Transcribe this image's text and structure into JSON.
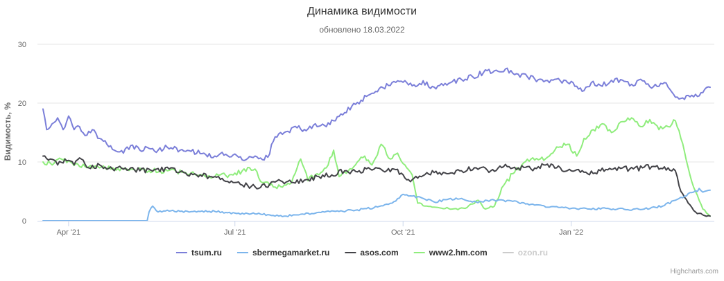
{
  "chart_data": {
    "type": "line",
    "title": "Динамика видимости",
    "subtitle": "обновлено 18.03.2022",
    "ylabel": "Видимость, %",
    "ylim": [
      0,
      30
    ],
    "yticks": [
      0,
      10,
      20,
      30
    ],
    "xlim": [
      "2021-03-18",
      "2022-03-18"
    ],
    "xticks": [
      {
        "date": "2021-04-01",
        "label": "Apr '21"
      },
      {
        "date": "2021-07-01",
        "label": "Jul '21"
      },
      {
        "date": "2021-10-01",
        "label": "Oct '21"
      },
      {
        "date": "2022-01-01",
        "label": "Jan '22"
      }
    ],
    "grid": true,
    "legend_position": "bottom-center",
    "credits": "Highcharts.com",
    "series": [
      {
        "name": "tsum.ru",
        "color": "#7b7fd9",
        "visible": true,
        "points": [
          [
            "2021-03-18",
            19.0
          ],
          [
            "2021-03-20",
            15.5
          ],
          [
            "2021-03-23",
            16.5
          ],
          [
            "2021-03-26",
            17.5
          ],
          [
            "2021-03-29",
            15.5
          ],
          [
            "2021-04-01",
            17.8
          ],
          [
            "2021-04-04",
            15.5
          ],
          [
            "2021-04-07",
            16.0
          ],
          [
            "2021-04-10",
            14.5
          ],
          [
            "2021-04-14",
            15.5
          ],
          [
            "2021-04-18",
            14.0
          ],
          [
            "2021-04-22",
            13.0
          ],
          [
            "2021-04-26",
            12.0
          ],
          [
            "2021-05-01",
            11.5
          ],
          [
            "2021-05-05",
            12.8
          ],
          [
            "2021-05-10",
            12.0
          ],
          [
            "2021-05-15",
            12.3
          ],
          [
            "2021-05-20",
            12.0
          ],
          [
            "2021-05-25",
            12.5
          ],
          [
            "2021-06-01",
            12.0
          ],
          [
            "2021-06-07",
            11.8
          ],
          [
            "2021-06-14",
            11.5
          ],
          [
            "2021-06-20",
            11.0
          ],
          [
            "2021-06-26",
            11.3
          ],
          [
            "2021-07-03",
            10.8
          ],
          [
            "2021-07-08",
            10.6
          ],
          [
            "2021-07-12",
            11.0
          ],
          [
            "2021-07-16",
            10.4
          ],
          [
            "2021-07-19",
            10.8
          ],
          [
            "2021-07-22",
            13.5
          ],
          [
            "2021-07-26",
            15.0
          ],
          [
            "2021-07-30",
            15.2
          ],
          [
            "2021-08-04",
            15.8
          ],
          [
            "2021-08-09",
            15.3
          ],
          [
            "2021-08-14",
            16.5
          ],
          [
            "2021-08-19",
            16.2
          ],
          [
            "2021-08-24",
            17.0
          ],
          [
            "2021-08-29",
            18.0
          ],
          [
            "2021-09-03",
            19.5
          ],
          [
            "2021-09-08",
            20.5
          ],
          [
            "2021-09-13",
            21.5
          ],
          [
            "2021-09-18",
            22.5
          ],
          [
            "2021-09-23",
            23.0
          ],
          [
            "2021-09-28",
            23.8
          ],
          [
            "2021-10-03",
            23.5
          ],
          [
            "2021-10-08",
            22.8
          ],
          [
            "2021-10-12",
            23.8
          ],
          [
            "2021-10-16",
            22.5
          ],
          [
            "2021-10-21",
            23.0
          ],
          [
            "2021-10-27",
            23.5
          ],
          [
            "2021-11-02",
            24.0
          ],
          [
            "2021-11-08",
            24.5
          ],
          [
            "2021-11-14",
            25.2
          ],
          [
            "2021-11-20",
            25.5
          ],
          [
            "2021-11-26",
            25.8
          ],
          [
            "2021-12-02",
            25.0
          ],
          [
            "2021-12-08",
            24.5
          ],
          [
            "2021-12-14",
            24.0
          ],
          [
            "2021-12-20",
            23.5
          ],
          [
            "2021-12-26",
            23.8
          ],
          [
            "2022-01-02",
            23.5
          ],
          [
            "2022-01-07",
            22.0
          ],
          [
            "2022-01-12",
            23.5
          ],
          [
            "2022-01-17",
            23.0
          ],
          [
            "2022-01-22",
            23.5
          ],
          [
            "2022-01-28",
            24.0
          ],
          [
            "2022-02-03",
            23.2
          ],
          [
            "2022-02-09",
            23.8
          ],
          [
            "2022-02-15",
            22.8
          ],
          [
            "2022-02-21",
            23.5
          ],
          [
            "2022-02-26",
            21.5
          ],
          [
            "2022-03-02",
            20.8
          ],
          [
            "2022-03-06",
            21.3
          ],
          [
            "2022-03-10",
            21.5
          ],
          [
            "2022-03-14",
            21.8
          ],
          [
            "2022-03-18",
            22.7
          ]
        ]
      },
      {
        "name": "sbermegamarket.ru",
        "color": "#7cb5ec",
        "visible": true,
        "points": [
          [
            "2021-03-18",
            0.0
          ],
          [
            "2021-04-10",
            0.0
          ],
          [
            "2021-05-01",
            0.0
          ],
          [
            "2021-05-14",
            0.0
          ],
          [
            "2021-05-15",
            1.5
          ],
          [
            "2021-05-17",
            2.5
          ],
          [
            "2021-05-20",
            1.5
          ],
          [
            "2021-05-25",
            1.8
          ],
          [
            "2021-06-01",
            1.6
          ],
          [
            "2021-06-10",
            1.5
          ],
          [
            "2021-06-20",
            1.6
          ],
          [
            "2021-07-01",
            1.3
          ],
          [
            "2021-07-10",
            1.2
          ],
          [
            "2021-07-20",
            1.0
          ],
          [
            "2021-07-28",
            0.8
          ],
          [
            "2021-08-05",
            1.0
          ],
          [
            "2021-08-15",
            1.4
          ],
          [
            "2021-08-25",
            1.6
          ],
          [
            "2021-09-05",
            1.8
          ],
          [
            "2021-09-15",
            2.2
          ],
          [
            "2021-09-25",
            3.0
          ],
          [
            "2021-10-01",
            4.5
          ],
          [
            "2021-10-06",
            4.2
          ],
          [
            "2021-10-12",
            3.8
          ],
          [
            "2021-10-18",
            3.2
          ],
          [
            "2021-10-25",
            3.6
          ],
          [
            "2021-11-02",
            3.8
          ],
          [
            "2021-11-10",
            3.2
          ],
          [
            "2021-11-20",
            3.5
          ],
          [
            "2021-11-30",
            3.3
          ],
          [
            "2021-12-10",
            2.8
          ],
          [
            "2021-12-20",
            2.3
          ],
          [
            "2022-01-01",
            2.1
          ],
          [
            "2022-01-10",
            2.0
          ],
          [
            "2022-01-20",
            2.1
          ],
          [
            "2022-02-01",
            1.9
          ],
          [
            "2022-02-10",
            2.0
          ],
          [
            "2022-02-20",
            2.5
          ],
          [
            "2022-02-27",
            3.5
          ],
          [
            "2022-03-04",
            4.2
          ],
          [
            "2022-03-08",
            4.8
          ],
          [
            "2022-03-12",
            5.5
          ],
          [
            "2022-03-15",
            5.0
          ],
          [
            "2022-03-18",
            5.2
          ]
        ]
      },
      {
        "name": "asos.com",
        "color": "#434348",
        "visible": true,
        "points": [
          [
            "2021-03-18",
            11.0
          ],
          [
            "2021-03-22",
            10.5
          ],
          [
            "2021-03-26",
            9.5
          ],
          [
            "2021-03-30",
            10.5
          ],
          [
            "2021-04-04",
            9.5
          ],
          [
            "2021-04-08",
            10.5
          ],
          [
            "2021-04-12",
            9.0
          ],
          [
            "2021-04-18",
            9.5
          ],
          [
            "2021-04-25",
            8.8
          ],
          [
            "2021-05-02",
            9.0
          ],
          [
            "2021-05-10",
            8.5
          ],
          [
            "2021-05-18",
            8.7
          ],
          [
            "2021-05-26",
            8.8
          ],
          [
            "2021-06-03",
            8.2
          ],
          [
            "2021-06-10",
            7.8
          ],
          [
            "2021-06-17",
            7.5
          ],
          [
            "2021-06-24",
            7.2
          ],
          [
            "2021-07-01",
            6.5
          ],
          [
            "2021-07-08",
            6.0
          ],
          [
            "2021-07-14",
            5.5
          ],
          [
            "2021-07-20",
            6.2
          ],
          [
            "2021-07-26",
            6.8
          ],
          [
            "2021-08-02",
            6.5
          ],
          [
            "2021-08-09",
            7.0
          ],
          [
            "2021-08-16",
            7.5
          ],
          [
            "2021-08-23",
            7.8
          ],
          [
            "2021-08-30",
            8.5
          ],
          [
            "2021-09-06",
            8.3
          ],
          [
            "2021-09-13",
            8.8
          ],
          [
            "2021-09-20",
            8.5
          ],
          [
            "2021-09-27",
            8.7
          ],
          [
            "2021-10-04",
            7.0
          ],
          [
            "2021-10-11",
            7.5
          ],
          [
            "2021-10-18",
            8.2
          ],
          [
            "2021-10-25",
            8.0
          ],
          [
            "2021-11-02",
            8.5
          ],
          [
            "2021-11-10",
            9.0
          ],
          [
            "2021-11-18",
            8.5
          ],
          [
            "2021-11-25",
            9.2
          ],
          [
            "2021-12-03",
            9.0
          ],
          [
            "2021-12-10",
            8.8
          ],
          [
            "2021-12-17",
            9.5
          ],
          [
            "2021-12-24",
            9.0
          ],
          [
            "2022-01-01",
            8.5
          ],
          [
            "2022-01-10",
            8.0
          ],
          [
            "2022-01-17",
            8.5
          ],
          [
            "2022-01-25",
            9.0
          ],
          [
            "2022-02-02",
            8.8
          ],
          [
            "2022-02-09",
            9.0
          ],
          [
            "2022-02-16",
            9.2
          ],
          [
            "2022-02-23",
            9.0
          ],
          [
            "2022-02-27",
            8.5
          ],
          [
            "2022-03-02",
            5.0
          ],
          [
            "2022-03-06",
            3.0
          ],
          [
            "2022-03-10",
            1.5
          ],
          [
            "2022-03-14",
            1.0
          ],
          [
            "2022-03-18",
            0.8
          ]
        ]
      },
      {
        "name": "www2.hm.com",
        "color": "#90ed7d",
        "visible": true,
        "points": [
          [
            "2021-03-18",
            10.0
          ],
          [
            "2021-03-23",
            9.5
          ],
          [
            "2021-03-28",
            10.5
          ],
          [
            "2021-04-03",
            9.8
          ],
          [
            "2021-04-10",
            9.2
          ],
          [
            "2021-04-18",
            9.0
          ],
          [
            "2021-04-26",
            8.8
          ],
          [
            "2021-05-05",
            8.8
          ],
          [
            "2021-05-15",
            8.5
          ],
          [
            "2021-05-25",
            8.5
          ],
          [
            "2021-06-04",
            8.2
          ],
          [
            "2021-06-12",
            7.8
          ],
          [
            "2021-06-20",
            7.5
          ],
          [
            "2021-06-28",
            7.8
          ],
          [
            "2021-07-05",
            8.5
          ],
          [
            "2021-07-12",
            8.8
          ],
          [
            "2021-07-16",
            6.5
          ],
          [
            "2021-07-20",
            6.0
          ],
          [
            "2021-07-26",
            5.8
          ],
          [
            "2021-08-01",
            6.5
          ],
          [
            "2021-08-06",
            10.5
          ],
          [
            "2021-08-10",
            6.8
          ],
          [
            "2021-08-15",
            8.0
          ],
          [
            "2021-08-20",
            9.0
          ],
          [
            "2021-08-24",
            12.0
          ],
          [
            "2021-08-27",
            7.5
          ],
          [
            "2021-09-01",
            8.5
          ],
          [
            "2021-09-06",
            10.0
          ],
          [
            "2021-09-10",
            11.0
          ],
          [
            "2021-09-14",
            9.5
          ],
          [
            "2021-09-19",
            13.0
          ],
          [
            "2021-09-24",
            10.5
          ],
          [
            "2021-09-28",
            11.5
          ],
          [
            "2021-10-02",
            9.5
          ],
          [
            "2021-10-06",
            7.8
          ],
          [
            "2021-10-09",
            3.0
          ],
          [
            "2021-10-14",
            2.5
          ],
          [
            "2021-10-21",
            2.2
          ],
          [
            "2021-10-28",
            2.0
          ],
          [
            "2021-11-04",
            2.1
          ],
          [
            "2021-11-11",
            3.5
          ],
          [
            "2021-11-15",
            2.0
          ],
          [
            "2021-11-20",
            2.5
          ],
          [
            "2021-11-25",
            6.0
          ],
          [
            "2021-11-30",
            8.0
          ],
          [
            "2021-12-05",
            9.5
          ],
          [
            "2021-12-10",
            10.5
          ],
          [
            "2021-12-15",
            10.5
          ],
          [
            "2021-12-20",
            11.0
          ],
          [
            "2021-12-25",
            12.5
          ],
          [
            "2021-12-30",
            13.0
          ],
          [
            "2022-01-04",
            11.0
          ],
          [
            "2022-01-08",
            14.0
          ],
          [
            "2022-01-13",
            15.5
          ],
          [
            "2022-01-18",
            16.5
          ],
          [
            "2022-01-23",
            15.0
          ],
          [
            "2022-01-28",
            16.8
          ],
          [
            "2022-02-03",
            17.5
          ],
          [
            "2022-02-08",
            16.0
          ],
          [
            "2022-02-13",
            17.2
          ],
          [
            "2022-02-18",
            15.5
          ],
          [
            "2022-02-23",
            16.0
          ],
          [
            "2022-02-27",
            17.0
          ],
          [
            "2022-03-02",
            14.0
          ],
          [
            "2022-03-06",
            9.0
          ],
          [
            "2022-03-10",
            5.0
          ],
          [
            "2022-03-14",
            2.0
          ],
          [
            "2022-03-18",
            0.8
          ]
        ]
      },
      {
        "name": "ozon.ru",
        "color": "#cccccc",
        "visible": false,
        "points": []
      }
    ]
  }
}
